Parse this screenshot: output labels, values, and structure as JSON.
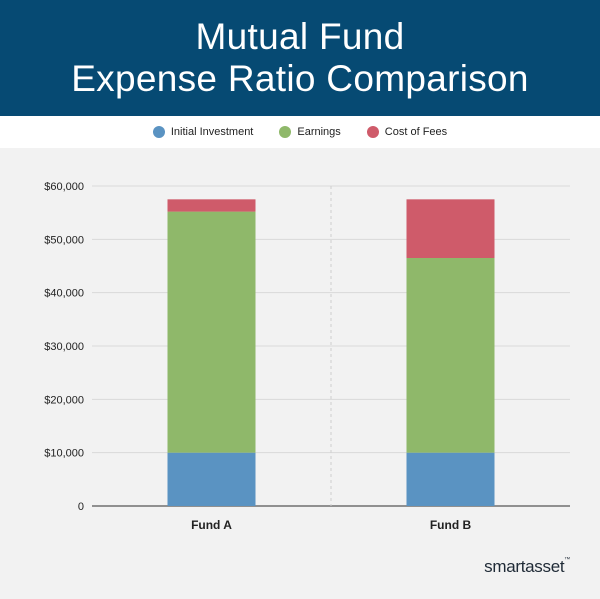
{
  "header": {
    "title_line1": "Mutual Fund",
    "title_line2": "Expense Ratio Comparison"
  },
  "legend": [
    {
      "label": "Initial Investment",
      "color": "#5a93c2"
    },
    {
      "label": "Earnings",
      "color": "#8fb86a"
    },
    {
      "label": "Cost of Fees",
      "color": "#cf5b6a"
    }
  ],
  "brand": {
    "name": "smartasset",
    "mark": "™"
  },
  "chart_data": {
    "type": "bar",
    "stacked": true,
    "title": "Mutual Fund Expense Ratio Comparison",
    "categories": [
      "Fund A",
      "Fund B"
    ],
    "series": [
      {
        "name": "Initial Investment",
        "color": "#5a93c2",
        "values": [
          10000,
          10000
        ]
      },
      {
        "name": "Earnings",
        "color": "#8fb86a",
        "values": [
          45200,
          36500
        ]
      },
      {
        "name": "Cost of Fees",
        "color": "#cf5b6a",
        "values": [
          2300,
          11000
        ]
      }
    ],
    "ylim": [
      0,
      60000
    ],
    "yticks": [
      0,
      10000,
      20000,
      30000,
      40000,
      50000,
      60000
    ],
    "ytick_labels": [
      "0",
      "$10,000",
      "$20,000",
      "$30,000",
      "$40,000",
      "$50,000",
      "$60,000"
    ],
    "xlabel": "",
    "ylabel": "",
    "grid": true,
    "legend_position": "top"
  }
}
